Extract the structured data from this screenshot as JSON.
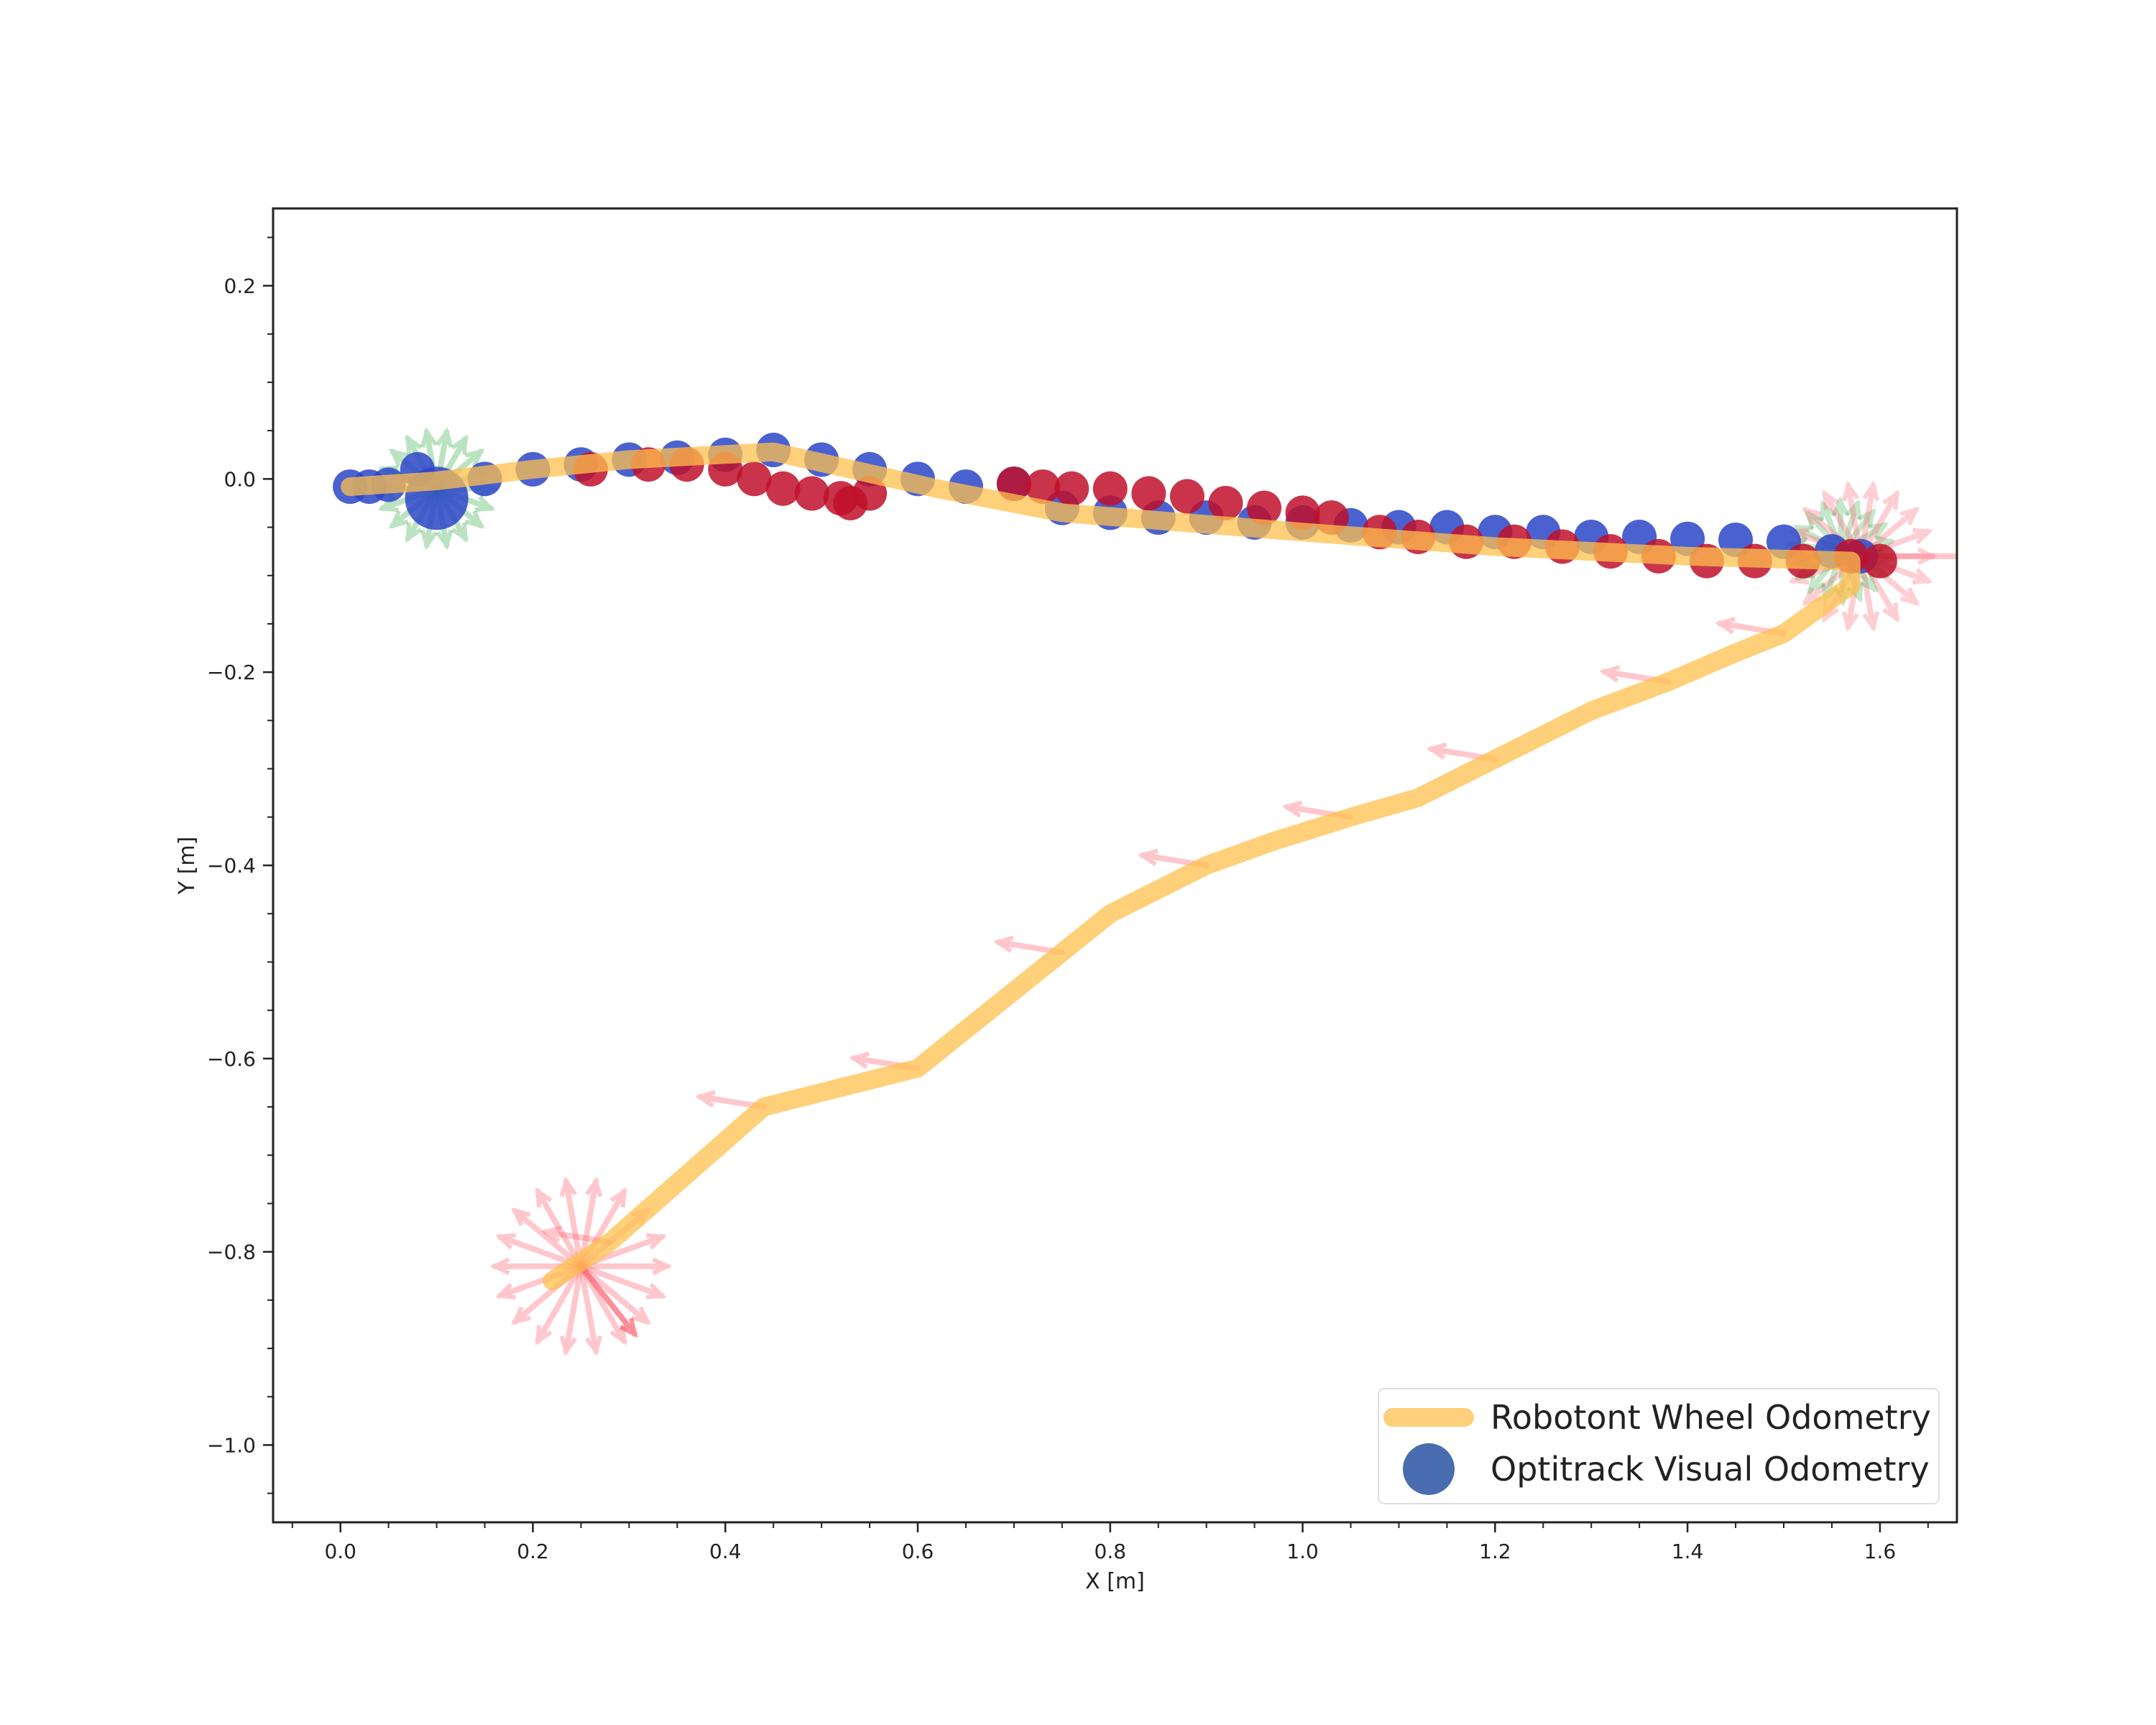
{
  "chart_data": {
    "type": "scatter",
    "title": "",
    "xlabel": "X [m]",
    "ylabel": "Y [m]",
    "xlim": [
      -0.07,
      1.68
    ],
    "ylim": [
      -1.08,
      0.28
    ],
    "x_ticks": [
      0.0,
      0.2,
      0.4,
      0.6,
      0.8,
      1.0,
      1.2,
      1.4,
      1.6
    ],
    "x_tick_labels": [
      "0.0",
      "0.2",
      "0.4",
      "0.6",
      "0.8",
      "1.0",
      "1.2",
      "1.4",
      "1.6"
    ],
    "y_ticks": [
      0.2,
      0.0,
      -0.2,
      -0.4,
      -0.6,
      -0.8,
      -1.0
    ],
    "y_tick_labels": [
      "0.2",
      "0.0",
      "−0.2",
      "−0.4",
      "−0.6",
      "−0.8",
      "−1.0"
    ],
    "grid": false,
    "legend_position": "bottom-right",
    "colors": {
      "wheel_odometry": "#ffc04d",
      "optitrack_blue": "#2a45c8",
      "optitrack_red": "#c0102a",
      "heading_red": "#ff6070",
      "heading_green": "#40b050"
    },
    "series": [
      {
        "name": "Robotont Wheel Odometry",
        "type": "line",
        "x": [
          0.01,
          0.1,
          0.2,
          0.3,
          0.45,
          0.62,
          0.75,
          1.0,
          1.2,
          1.4,
          1.57,
          1.57,
          1.5,
          1.45,
          1.38,
          1.3,
          1.2,
          1.12,
          1.05,
          0.97,
          0.9,
          0.8,
          0.75,
          0.7,
          0.6,
          0.52,
          0.44,
          0.36,
          0.28,
          0.22
        ],
        "y": [
          -0.008,
          -0.002,
          0.01,
          0.02,
          0.028,
          -0.01,
          -0.035,
          -0.055,
          -0.07,
          -0.08,
          -0.085,
          -0.11,
          -0.16,
          -0.18,
          -0.21,
          -0.24,
          -0.29,
          -0.33,
          -0.35,
          -0.375,
          -0.4,
          -0.45,
          -0.49,
          -0.53,
          -0.61,
          -0.63,
          -0.65,
          -0.72,
          -0.79,
          -0.83
        ]
      },
      {
        "name": "Optitrack Visual Odometry",
        "type": "scatter",
        "x": [
          0.01,
          0.03,
          0.05,
          0.08,
          0.1,
          0.15,
          0.2,
          0.25,
          0.3,
          0.35,
          0.4,
          0.45,
          0.5,
          0.55,
          0.6,
          0.65,
          0.7,
          0.75,
          0.8,
          0.85,
          0.9,
          0.95,
          1.0,
          1.05,
          1.1,
          1.15,
          1.2,
          1.25,
          1.3,
          1.35,
          1.4,
          1.45,
          1.5,
          1.55,
          1.58
        ],
        "y": [
          -0.008,
          -0.008,
          -0.006,
          0.01,
          -0.02,
          0.0,
          0.01,
          0.015,
          0.02,
          0.022,
          0.025,
          0.03,
          0.02,
          0.01,
          0.0,
          -0.008,
          -0.005,
          -0.03,
          -0.035,
          -0.04,
          -0.04,
          -0.045,
          -0.045,
          -0.048,
          -0.05,
          -0.05,
          -0.055,
          -0.055,
          -0.06,
          -0.06,
          -0.062,
          -0.063,
          -0.065,
          -0.075,
          -0.08
        ]
      },
      {
        "name": "",
        "type": "scatter",
        "x": [
          0.26,
          0.32,
          0.36,
          0.4,
          0.43,
          0.46,
          0.49,
          0.52,
          0.53,
          0.55,
          0.7,
          0.73,
          0.76,
          0.8,
          0.84,
          0.88,
          0.92,
          0.96,
          1.0,
          1.03,
          1.08,
          1.12,
          1.17,
          1.22,
          1.27,
          1.32,
          1.37,
          1.42,
          1.47,
          1.52,
          1.57,
          1.6
        ],
        "y": [
          0.01,
          0.015,
          0.015,
          0.01,
          0.0,
          -0.01,
          -0.015,
          -0.02,
          -0.025,
          -0.015,
          -0.005,
          -0.008,
          -0.01,
          -0.01,
          -0.015,
          -0.018,
          -0.025,
          -0.03,
          -0.035,
          -0.04,
          -0.055,
          -0.06,
          -0.065,
          -0.065,
          -0.07,
          -0.075,
          -0.08,
          -0.085,
          -0.085,
          -0.085,
          -0.08,
          -0.085
        ]
      }
    ]
  },
  "legend": {
    "items": [
      {
        "label": "Robotont Wheel Odometry",
        "marker": "line",
        "color": "#ffc04d"
      },
      {
        "label": "Optitrack Visual Odometry",
        "marker": "circle",
        "color": "#4a6cb0"
      }
    ]
  }
}
